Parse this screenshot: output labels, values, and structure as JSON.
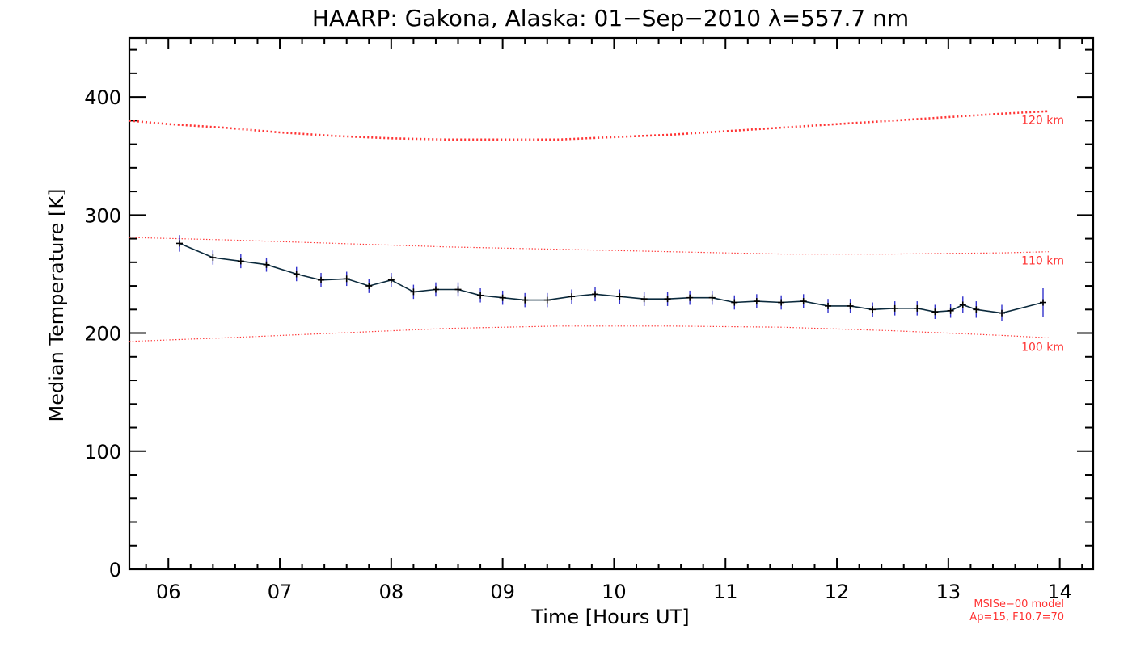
{
  "chart_data": {
    "type": "line",
    "title": "HAARP: Gakona,  Alaska: 01−Sep−2010 λ=557.7 nm",
    "xlabel": "Time [Hours UT]",
    "ylabel": "Median Temperature [K]",
    "xlim": [
      5.65,
      14.3
    ],
    "ylim": [
      0,
      450
    ],
    "x_tick_labels": [
      "06",
      "07",
      "08",
      "09",
      "10",
      "11",
      "12",
      "13",
      "14"
    ],
    "x_ticks": [
      6,
      7,
      8,
      9,
      10,
      11,
      12,
      13,
      14
    ],
    "y_tick_labels": [
      "0",
      "100",
      "200",
      "300",
      "400"
    ],
    "y_ticks": [
      0,
      100,
      200,
      300,
      400
    ],
    "grid": false,
    "series": [
      {
        "kind": "measured",
        "color": "#0b2a3d",
        "error_color": "#3333cc",
        "x": [
          6.1,
          6.4,
          6.65,
          6.88,
          7.15,
          7.37,
          7.6,
          7.8,
          8.0,
          8.2,
          8.4,
          8.6,
          8.8,
          9.0,
          9.2,
          9.4,
          9.62,
          9.83,
          10.05,
          10.27,
          10.48,
          10.68,
          10.88,
          11.08,
          11.28,
          11.5,
          11.7,
          11.92,
          12.12,
          12.32,
          12.52,
          12.72,
          12.88,
          13.02,
          13.13,
          13.25,
          13.48,
          13.85
        ],
        "y": [
          276,
          264,
          261,
          258,
          250,
          245,
          246,
          240,
          245,
          235,
          237,
          237,
          232,
          230,
          228,
          228,
          231,
          233,
          231,
          229,
          229,
          230,
          230,
          226,
          227,
          226,
          227,
          223,
          223,
          220,
          221,
          221,
          218,
          219,
          224,
          220,
          217,
          226
        ],
        "err": [
          7,
          6,
          6,
          6,
          6,
          6,
          6,
          6,
          6,
          6,
          6,
          6,
          6,
          6,
          6,
          6,
          6,
          6,
          6,
          6,
          6,
          6,
          6,
          6,
          6,
          6,
          6,
          6,
          6,
          6,
          6,
          6,
          6,
          6,
          7,
          7,
          7,
          12
        ]
      }
    ],
    "model_curves": [
      {
        "name": "120 km",
        "color": "#ff3333",
        "style": "dotted-thick",
        "x": [
          5.65,
          6.0,
          6.5,
          7.0,
          7.5,
          8.0,
          8.5,
          9.0,
          9.5,
          10.0,
          10.5,
          11.0,
          11.5,
          12.0,
          12.5,
          13.0,
          13.5,
          13.9
        ],
        "y": [
          380,
          377,
          374,
          370,
          367,
          365,
          364,
          364,
          364,
          366,
          368,
          371,
          374,
          377,
          380,
          383,
          386,
          388
        ]
      },
      {
        "name": "110 km",
        "color": "#ff3333",
        "style": "dotted-thin",
        "x": [
          5.65,
          6.5,
          7.5,
          8.5,
          9.5,
          10.5,
          11.5,
          12.5,
          13.5,
          13.9
        ],
        "y": [
          281,
          279,
          276,
          273,
          271,
          269,
          267,
          267,
          268,
          269
        ]
      },
      {
        "name": "100 km",
        "color": "#ff3333",
        "style": "dotted-thin",
        "x": [
          5.65,
          6.5,
          7.5,
          8.5,
          9.5,
          10.5,
          11.5,
          12.5,
          13.5,
          13.9
        ],
        "y": [
          193,
          196,
          200,
          204,
          206,
          206,
          205,
          202,
          198,
          196
        ]
      }
    ],
    "annotations": {
      "model_line1": "MSISe−00 model",
      "model_line2": "Ap=15, F10.7=70"
    }
  }
}
